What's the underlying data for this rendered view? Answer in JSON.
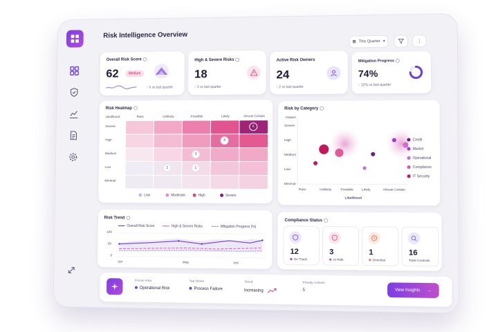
{
  "page": {
    "title": "Risk Intelligence Overview",
    "period": "This Quarter"
  },
  "kpis": {
    "overall": {
      "title": "Overall Risk Score",
      "value": "62",
      "badge": "Medium",
      "change": "6",
      "change_text": "vs last quarter"
    },
    "high": {
      "title": "High & Severe Risks",
      "value": "18",
      "change": "3",
      "change_text": "vs last quarter"
    },
    "owners": {
      "title": "Active Risk Owners",
      "value": "24",
      "change": "2",
      "change_text": "vs last quarter"
    },
    "mitigation": {
      "title": "Mitigation Progress",
      "value": "74%",
      "change": "12%",
      "change_text": "vs last quarter",
      "progress": 0.74
    }
  },
  "heatmap": {
    "title": "Risk Heatmap",
    "corner": "Likelihood",
    "columns": [
      "Rare",
      "Unlikely",
      "Possible",
      "Likely",
      "Almost Certain"
    ],
    "rows": [
      "Severe",
      "High",
      "Medium",
      "Low",
      "Minimal"
    ],
    "markers": [
      {
        "row": 0,
        "col": 4,
        "count": "6"
      },
      {
        "row": 1,
        "col": 3,
        "count": "4"
      },
      {
        "row": 2,
        "col": 2,
        "count": "3"
      },
      {
        "row": 3,
        "col": 1,
        "count": "2"
      },
      {
        "row": 3,
        "col": 2,
        "count": "1"
      }
    ],
    "legend": [
      {
        "label": "Low",
        "color": "#c8b6ea"
      },
      {
        "label": "Moderate",
        "color": "#e88cc0"
      },
      {
        "label": "High",
        "color": "#d9447e"
      },
      {
        "label": "Severe",
        "color": "#8a1a6a"
      }
    ]
  },
  "category": {
    "title": "Risk by Category",
    "yaxis_title": "Impact",
    "xaxis_title": "Likelihood",
    "y_labels": [
      "Severe",
      "High",
      "Medium",
      "Low",
      "Minimal"
    ],
    "x_labels": [
      "Rare",
      "Unlikely",
      "Possible",
      "Likely",
      "Almost Certain"
    ],
    "legend": [
      {
        "label": "Credit",
        "color": "#6b1e8a"
      },
      {
        "label": "Market",
        "color": "#9b3fd0"
      },
      {
        "label": "Operational",
        "color": "#c86bd8"
      },
      {
        "label": "Compliance",
        "color": "#e05a9c"
      },
      {
        "label": "IT Security",
        "color": "#c2185b"
      }
    ]
  },
  "trend": {
    "title": "Risk Trend",
    "legend": [
      "Overall Risk Score",
      "High & Severe Risks",
      "Mitigation Progress (%)"
    ],
    "y_ticks": [
      "100",
      "50",
      "0"
    ],
    "x_ticks": [
      "Apr",
      "May",
      "Jun"
    ],
    "colors": [
      "#5b2bd6",
      "#d94fa0",
      "#8c7fd6"
    ]
  },
  "compliance": {
    "title": "Compliance Status",
    "items": [
      {
        "value": "12",
        "label": "On Track",
        "color": "#7b3fe4",
        "bg": "#ece4fb"
      },
      {
        "value": "3",
        "label": "At Risk",
        "color": "#d9447e",
        "bg": "#fbe4ee"
      },
      {
        "value": "1",
        "label": "Overdue",
        "color": "#e0704a",
        "bg": "#fde9e1"
      },
      {
        "value": "16",
        "label": "Total Controls",
        "color": "#6a5ad8",
        "bg": "#ebe8fa"
      }
    ]
  },
  "footer": {
    "focus_label": "Focus Area",
    "focus_value": "Operational Risk",
    "driver_label": "Top Driver",
    "driver_value": "Process Failure",
    "trend_label": "Trend",
    "trend_value": "Increasing",
    "priority_label": "Priority Actions",
    "priority_value": "5",
    "button": "View Insights"
  }
}
